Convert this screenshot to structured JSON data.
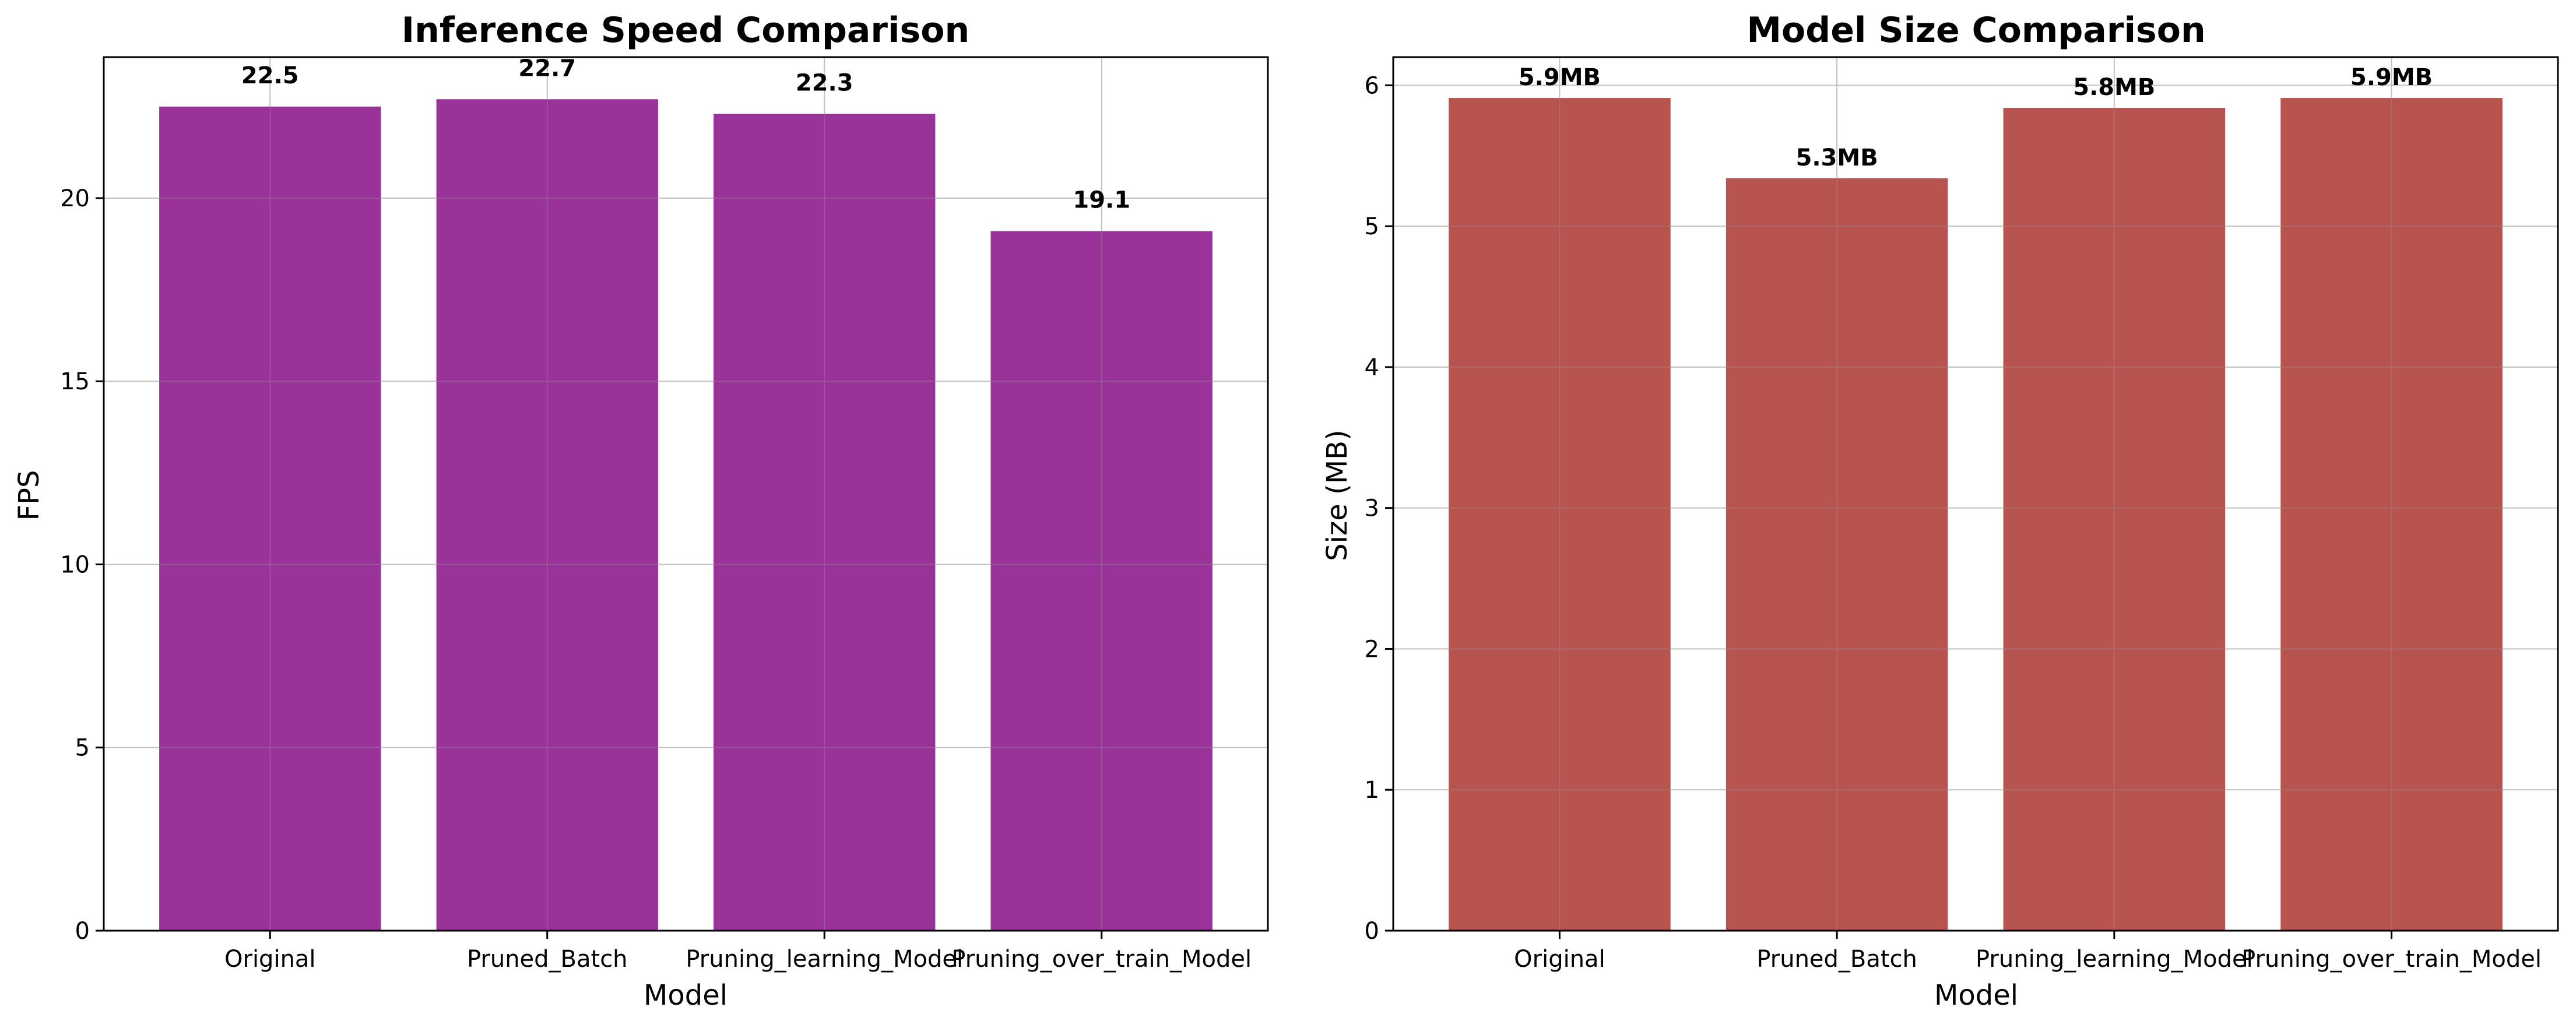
{
  "chart_data": [
    {
      "type": "bar",
      "title": "Inference Speed Comparison",
      "xlabel": "Model",
      "ylabel": "FPS",
      "categories": [
        "Original",
        "Pruned_Batch",
        "Pruning_learning_Model",
        "Pruning_over_train_Model"
      ],
      "values": [
        22.5,
        22.7,
        22.3,
        19.1
      ],
      "value_labels": [
        "22.5",
        "22.7",
        "22.3",
        "19.1"
      ],
      "yticks": [
        0,
        5,
        10,
        15,
        20
      ],
      "ylim": [
        0,
        23.85
      ],
      "color": "#993399",
      "grid": true
    },
    {
      "type": "bar",
      "title": "Model Size Comparison",
      "xlabel": "Model",
      "ylabel": "Size (MB)",
      "categories": [
        "Original",
        "Pruned_Batch",
        "Pruning_learning_Model",
        "Pruning_over_train_Model"
      ],
      "values": [
        5.91,
        5.34,
        5.84,
        5.91
      ],
      "value_labels": [
        "5.9MB",
        "5.3MB",
        "5.8MB",
        "5.9MB"
      ],
      "yticks": [
        0,
        1,
        2,
        3,
        4,
        5,
        6
      ],
      "ylim": [
        0,
        6.2
      ],
      "color": "#b85450",
      "grid": true
    }
  ]
}
